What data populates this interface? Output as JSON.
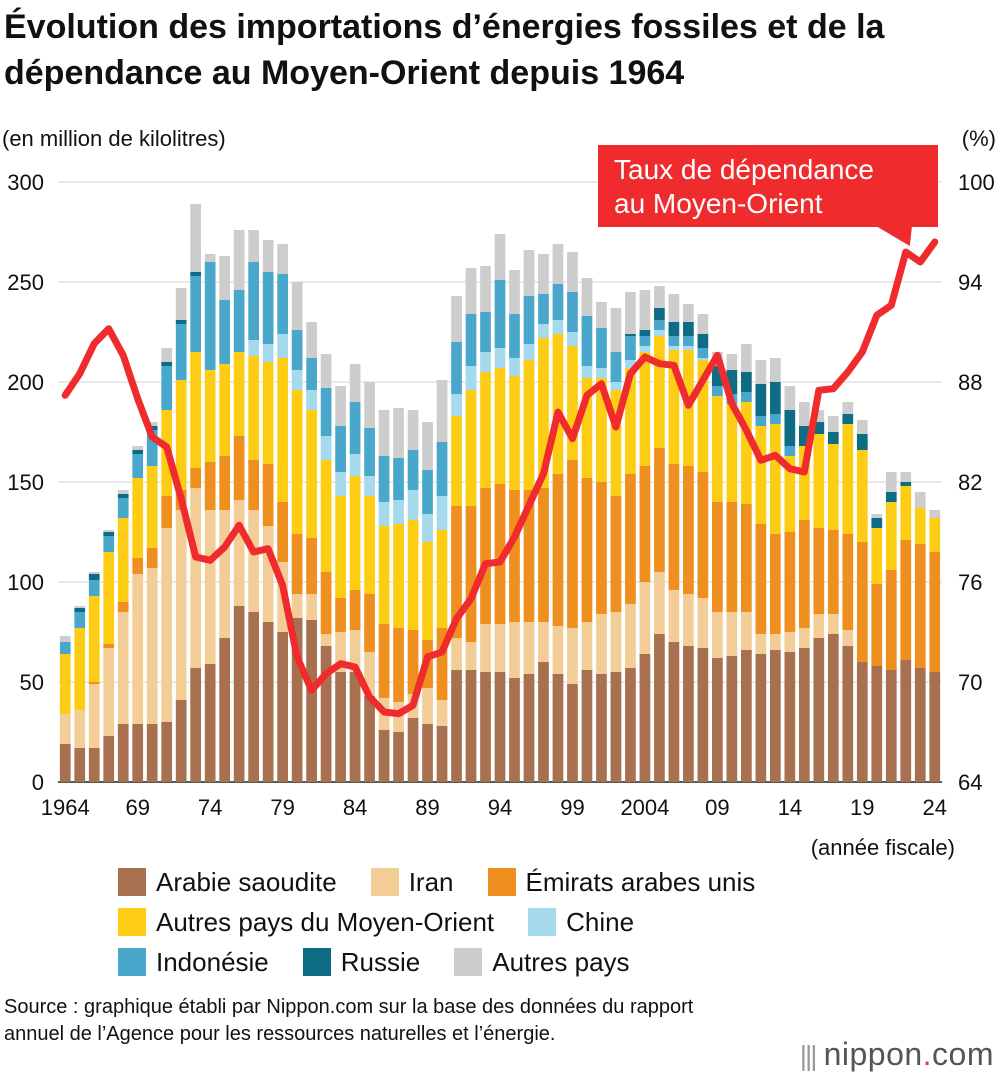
{
  "title": "Évolution des importations d’énergies fossiles et de la dépendance au Moyen-Orient depuis 1964",
  "source": "Source : graphique établi par Nippon.com sur la base des données du rapport annuel de l’Agence pour les ressources naturelles et l’énergie.",
  "logo": {
    "name": "nippon",
    "suffix": "com",
    "separator": "."
  },
  "chart_data": {
    "type": "bar",
    "stacked": true,
    "title": "Évolution des importations d’énergies fossiles et de la dépendance au Moyen-Orient depuis 1964",
    "ylabel": "(en million de kilolitres)",
    "y2label": "(%)",
    "xlabel": "(année fiscale)",
    "ylim": [
      0,
      300
    ],
    "y2lim": [
      64,
      100
    ],
    "yticks": [
      "0",
      "50",
      "100",
      "150",
      "200",
      "250",
      "300"
    ],
    "y2ticks": [
      "64",
      "70",
      "76",
      "82",
      "88",
      "94",
      "100"
    ],
    "years": [
      1964,
      1965,
      1966,
      1967,
      1968,
      1969,
      1970,
      1971,
      1972,
      1973,
      1974,
      1975,
      1976,
      1977,
      1978,
      1979,
      1980,
      1981,
      1982,
      1983,
      1984,
      1985,
      1986,
      1987,
      1988,
      1989,
      1990,
      1991,
      1992,
      1993,
      1994,
      1995,
      1996,
      1997,
      1998,
      1999,
      2000,
      2001,
      2002,
      2003,
      2004,
      2005,
      2006,
      2007,
      2008,
      2009,
      2010,
      2011,
      2012,
      2013,
      2014,
      2015,
      2016,
      2017,
      2018,
      2019,
      2020,
      2021,
      2022,
      2023,
      2024
    ],
    "xtick_labels": [
      {
        "year": 1964,
        "label": "1964"
      },
      {
        "year": 1969,
        "label": "69"
      },
      {
        "year": 1974,
        "label": "74"
      },
      {
        "year": 1979,
        "label": "79"
      },
      {
        "year": 1984,
        "label": "84"
      },
      {
        "year": 1989,
        "label": "89"
      },
      {
        "year": 1994,
        "label": "94"
      },
      {
        "year": 1999,
        "label": "99"
      },
      {
        "year": 2004,
        "label": "2004"
      },
      {
        "year": 2009,
        "label": "09"
      },
      {
        "year": 2014,
        "label": "14"
      },
      {
        "year": 2019,
        "label": "19"
      },
      {
        "year": 2024,
        "label": "24"
      }
    ],
    "series": [
      {
        "name": "Arabie saoudite",
        "color": "#a8704f",
        "values": [
          19,
          17,
          17,
          23,
          29,
          29,
          29,
          30,
          41,
          57,
          59,
          72,
          88,
          85,
          80,
          75,
          82,
          81,
          68,
          55,
          55,
          43,
          26,
          25,
          32,
          29,
          28,
          56,
          56,
          55,
          55,
          52,
          54,
          60,
          54,
          49,
          56,
          54,
          55,
          57,
          64,
          74,
          70,
          68,
          67,
          62,
          63,
          66,
          64,
          66,
          65,
          67,
          72,
          74,
          68,
          60,
          58,
          56,
          61,
          57,
          55
        ]
      },
      {
        "name": "Iran",
        "color": "#f2cd96",
        "values": [
          15,
          19,
          32,
          44,
          56,
          75,
          78,
          97,
          95,
          90,
          77,
          64,
          53,
          51,
          48,
          35,
          12,
          13,
          6,
          20,
          21,
          22,
          16,
          15,
          12,
          18,
          13,
          16,
          14,
          24,
          24,
          28,
          26,
          20,
          24,
          28,
          24,
          30,
          30,
          32,
          36,
          31,
          26,
          26,
          25,
          23,
          22,
          19,
          10,
          8,
          10,
          10,
          12,
          10,
          8,
          0,
          0,
          0,
          0,
          0,
          0
        ]
      },
      {
        "name": "Émirats arabes unis",
        "color": "#ef8f1f",
        "values": [
          0,
          0,
          1,
          2,
          5,
          8,
          10,
          16,
          10,
          10,
          24,
          27,
          32,
          25,
          31,
          30,
          30,
          28,
          31,
          17,
          20,
          29,
          37,
          37,
          32,
          24,
          36,
          66,
          68,
          68,
          70,
          66,
          66,
          67,
          76,
          84,
          72,
          66,
          58,
          65,
          58,
          62,
          63,
          64,
          63,
          55,
          55,
          54,
          55,
          50,
          50,
          54,
          43,
          42,
          48,
          60,
          41,
          50,
          60,
          62,
          60
        ]
      },
      {
        "name": "Autres pays du Moyen-Orient",
        "color": "#fccd14",
        "values": [
          30,
          41,
          43,
          46,
          42,
          40,
          41,
          43,
          55,
          58,
          46,
          46,
          42,
          52,
          51,
          72,
          72,
          64,
          56,
          51,
          57,
          49,
          49,
          52,
          55,
          49,
          49,
          45,
          58,
          58,
          58,
          57,
          65,
          75,
          70,
          57,
          50,
          52,
          53,
          53,
          57,
          56,
          57,
          58,
          56,
          53,
          49,
          51,
          49,
          55,
          38,
          37,
          47,
          43,
          55,
          46,
          28,
          34,
          27,
          18,
          17
        ]
      },
      {
        "name": "Chine",
        "color": "#a5d9ec",
        "values": [
          0,
          0,
          0,
          0,
          0,
          0,
          0,
          0,
          0,
          0,
          0,
          0,
          0,
          8,
          9,
          12,
          10,
          10,
          12,
          12,
          11,
          10,
          12,
          12,
          15,
          14,
          17,
          11,
          12,
          10,
          10,
          9,
          8,
          7,
          7,
          7,
          6,
          5,
          4,
          4,
          3,
          3,
          2,
          2,
          1,
          0,
          0,
          0,
          0,
          0,
          0,
          0,
          0,
          0,
          0,
          0,
          0,
          0,
          0,
          0,
          0
        ]
      },
      {
        "name": "Indonésie",
        "color": "#4aa7cc",
        "values": [
          6,
          8,
          8,
          8,
          10,
          12,
          18,
          22,
          28,
          38,
          54,
          32,
          31,
          39,
          36,
          30,
          20,
          16,
          24,
          23,
          26,
          24,
          23,
          21,
          20,
          22,
          27,
          26,
          26,
          20,
          34,
          22,
          24,
          15,
          18,
          20,
          25,
          20,
          15,
          12,
          5,
          5,
          5,
          5,
          5,
          5,
          5,
          5,
          5,
          5,
          5,
          0,
          0,
          0,
          0,
          0,
          0,
          0,
          0,
          0,
          0
        ]
      },
      {
        "name": "Russie",
        "color": "#0f6c85",
        "values": [
          0,
          2,
          3,
          2,
          2,
          2,
          2,
          2,
          2,
          2,
          0,
          0,
          0,
          0,
          0,
          0,
          0,
          0,
          0,
          0,
          0,
          0,
          0,
          0,
          0,
          0,
          0,
          0,
          0,
          0,
          0,
          0,
          0,
          0,
          0,
          0,
          0,
          0,
          0,
          1,
          3,
          6,
          7,
          7,
          7,
          10,
          12,
          10,
          16,
          16,
          18,
          10,
          6,
          6,
          5,
          8,
          5,
          5,
          2,
          0,
          0
        ]
      },
      {
        "name": "Autres pays",
        "color": "#cdcdcd",
        "values": [
          3,
          1,
          1,
          1,
          2,
          2,
          2,
          7,
          16,
          34,
          4,
          22,
          30,
          16,
          16,
          15,
          24,
          18,
          17,
          20,
          19,
          23,
          23,
          25,
          20,
          24,
          31,
          23,
          23,
          23,
          23,
          22,
          23,
          20,
          20,
          20,
          19,
          13,
          22,
          21,
          20,
          11,
          14,
          9,
          10,
          7,
          8,
          14,
          12,
          12,
          12,
          12,
          6,
          8,
          6,
          7,
          2,
          10,
          5,
          8,
          4
        ]
      }
    ],
    "dependence": {
      "name": "Taux de dépendance au Moyen-Orient",
      "color": "#ef2b2d",
      "values": [
        87.2,
        88.5,
        90.3,
        91.2,
        89.6,
        87.0,
        84.7,
        84.1,
        81.0,
        77.5,
        77.3,
        78.1,
        79.4,
        77.8,
        78.0,
        75.8,
        71.5,
        69.5,
        70.5,
        71.1,
        70.9,
        69.1,
        68.2,
        68.1,
        68.6,
        71.5,
        71.8,
        73.8,
        75.0,
        77.1,
        77.2,
        78.7,
        80.6,
        82.5,
        86.2,
        84.6,
        87.2,
        87.9,
        85.3,
        88.5,
        89.5,
        89.1,
        89.0,
        86.6,
        88.1,
        89.6,
        86.7,
        85.1,
        83.3,
        83.6,
        82.8,
        82.6,
        87.5,
        87.6,
        88.6,
        89.8,
        92.0,
        92.6,
        95.8,
        95.2,
        96.4
      ]
    },
    "annotation": "Taux de dépendance au Moyen-Orient",
    "annotation_lines": [
      "Taux de dépendance",
      "au Moyen-Orient"
    ],
    "legend_position": "bottom"
  }
}
